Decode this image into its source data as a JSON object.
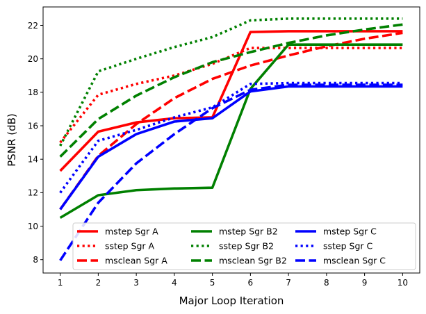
{
  "chart_data": {
    "type": "line",
    "title": "",
    "xlabel": "Major Loop Iteration",
    "ylabel": "PSNR (dB)",
    "x": [
      1,
      2,
      3,
      4,
      5,
      6,
      7,
      8,
      9,
      10
    ],
    "xticks": [
      "1",
      "2",
      "3",
      "4",
      "5",
      "6",
      "7",
      "8",
      "9",
      "10"
    ],
    "yticks": [
      "8",
      "10",
      "12",
      "14",
      "16",
      "18",
      "20",
      "22"
    ],
    "xlim": [
      0.55,
      10.45
    ],
    "ylim": [
      7.2,
      23.1
    ],
    "grid": false,
    "legend": {
      "position": "lower-right",
      "columns": 3
    },
    "series": [
      {
        "name": "mstep Sgr A",
        "color": "#ff0000",
        "style": "solid",
        "values": [
          13.3,
          15.65,
          16.2,
          16.45,
          16.5,
          21.6,
          21.65,
          21.65,
          21.65,
          21.65
        ]
      },
      {
        "name": "sstep Sgr A",
        "color": "#ff0000",
        "style": "dotted",
        "values": [
          15.0,
          17.85,
          18.5,
          19.0,
          19.7,
          20.65,
          20.65,
          20.65,
          20.65,
          20.65
        ]
      },
      {
        "name": "msclean Sgr A",
        "color": "#ff0000",
        "style": "dashed",
        "values": [
          11.0,
          14.2,
          16.1,
          17.65,
          18.8,
          19.6,
          20.2,
          20.75,
          21.2,
          21.55
        ]
      },
      {
        "name": "mstep Sgr B2",
        "color": "#008000",
        "style": "solid",
        "values": [
          10.5,
          11.85,
          12.15,
          12.25,
          12.3,
          18.2,
          20.85,
          20.85,
          20.85,
          20.85
        ]
      },
      {
        "name": "sstep Sgr B2",
        "color": "#008000",
        "style": "dotted",
        "values": [
          14.8,
          19.25,
          20.0,
          20.7,
          21.3,
          22.3,
          22.4,
          22.4,
          22.4,
          22.4
        ]
      },
      {
        "name": "msclean Sgr B2",
        "color": "#008000",
        "style": "dashed",
        "values": [
          14.15,
          16.4,
          17.8,
          18.9,
          19.8,
          20.4,
          20.95,
          21.4,
          21.75,
          22.05
        ]
      },
      {
        "name": "mstep Sgr C",
        "color": "#0000ff",
        "style": "solid",
        "values": [
          11.0,
          14.15,
          15.5,
          16.25,
          16.45,
          18.05,
          18.35,
          18.35,
          18.35,
          18.35
        ]
      },
      {
        "name": "sstep Sgr C",
        "color": "#0000ff",
        "style": "dotted",
        "values": [
          12.0,
          15.1,
          15.75,
          16.5,
          17.1,
          18.5,
          18.55,
          18.55,
          18.55,
          18.55
        ]
      },
      {
        "name": "msclean Sgr C",
        "color": "#0000ff",
        "style": "dashed",
        "values": [
          7.95,
          11.4,
          13.75,
          15.5,
          17.05,
          18.15,
          18.45,
          18.45,
          18.45,
          18.45
        ]
      }
    ]
  }
}
